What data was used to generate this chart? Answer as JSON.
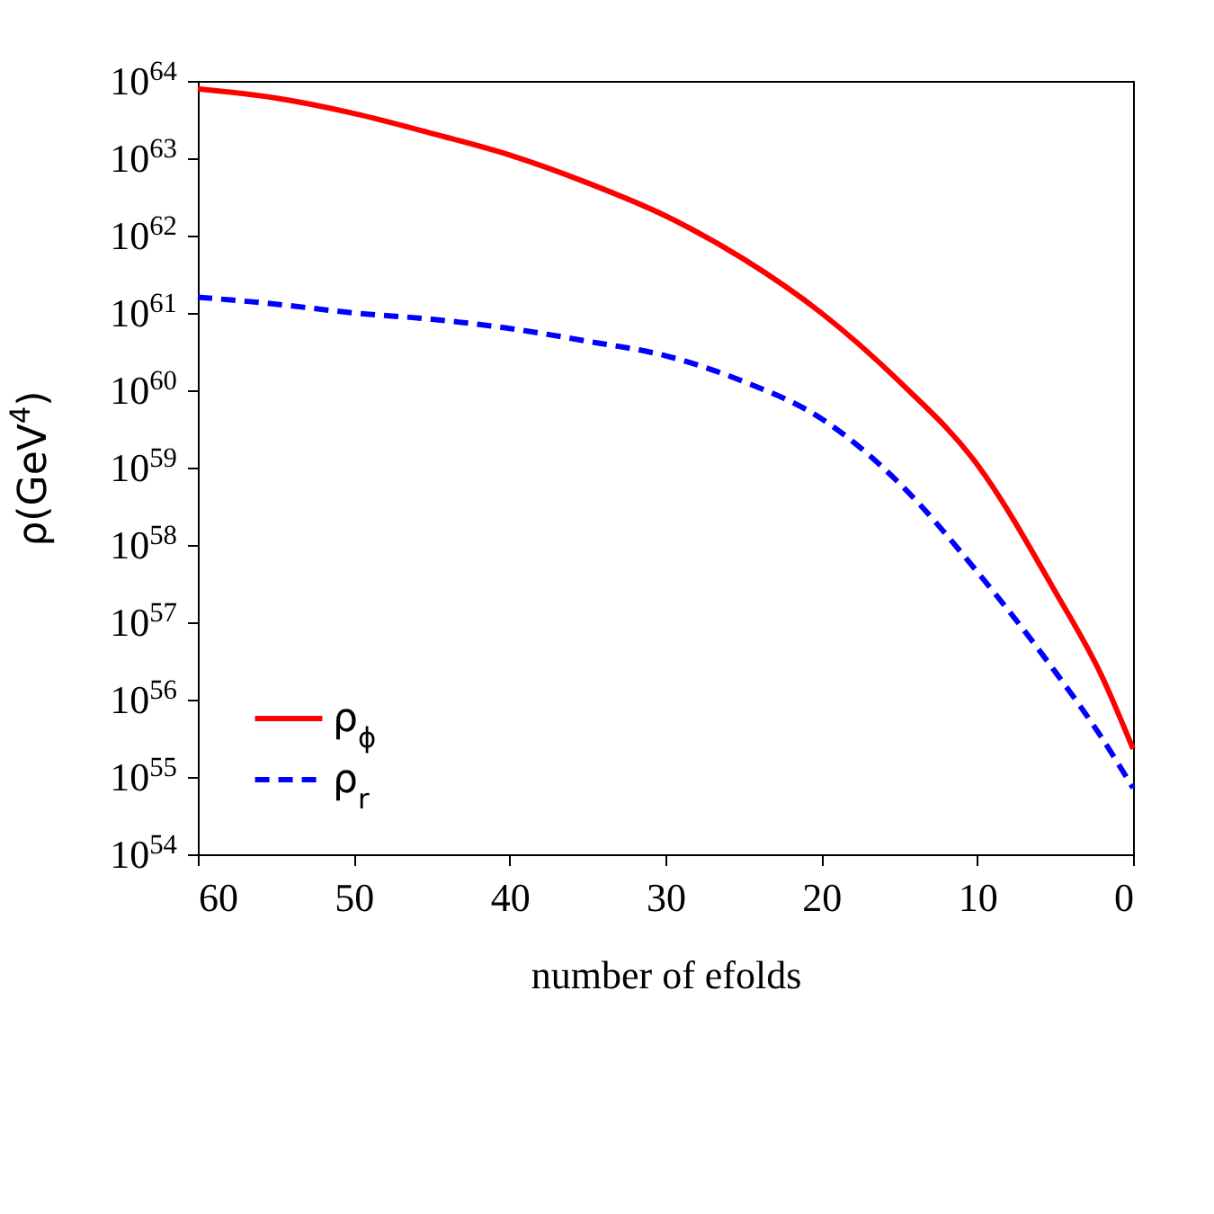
{
  "chart_data": {
    "type": "line",
    "xlabel": "number of efolds",
    "ylabel": "ρ(GeV$^{4}$)",
    "log": "y",
    "xlim": [
      60,
      0
    ],
    "xticks": [
      60,
      50,
      40,
      30,
      20,
      10,
      0
    ],
    "ylim": [
      1e+54,
      1e+64
    ],
    "yticks": [
      {
        "value": 1e+54,
        "label": "10$^{54}$"
      },
      {
        "value": 1e+55,
        "label": "10$^{55}$"
      },
      {
        "value": 1e+56,
        "label": "10$^{56}$"
      },
      {
        "value": 1e+57,
        "label": "10$^{57}$"
      },
      {
        "value": 1e+58,
        "label": "10$^{58}$"
      },
      {
        "value": 1e+59,
        "label": "10$^{59}$"
      },
      {
        "value": 1e+60,
        "label": "10$^{60}$"
      },
      {
        "value": 1e+61,
        "label": "10$^{61}$"
      },
      {
        "value": 1e+62,
        "label": "10$^{62}$"
      },
      {
        "value": 1e+63,
        "label": "10$^{63}$"
      },
      {
        "value": 1e+64,
        "label": "10$^{64}$"
      }
    ],
    "legend": "bottom left",
    "grid": false,
    "series": [
      {
        "name": "ρ$_{ϕ}$",
        "color": "#ff0000",
        "line_style": "solid",
        "x": [
          60,
          55,
          50,
          45,
          40,
          35,
          30,
          25,
          20,
          15,
          10,
          5,
          2,
          0
        ],
        "values": [
          7.9e+63,
          6e+63,
          3.8e+63,
          2.1e+63,
          1.1e+63,
          4.8e+62,
          1.8e+62,
          5e+61,
          1e+61,
          1.3e+60,
          1.1e+59,
          2.5e+57,
          2e+56,
          2.3e+55
        ]
      },
      {
        "name": "ρ$_{r}$",
        "color": "#0000ff",
        "line_style": "dashed",
        "x": [
          60,
          55,
          50,
          45,
          40,
          35,
          30,
          25,
          20,
          15,
          10,
          5,
          2,
          0
        ],
        "values": [
          1.6e+61,
          1.3e+61,
          1e+61,
          8.3e+60,
          6.3e+60,
          4.3e+60,
          2.8e+60,
          1.3e+60,
          4.3e+59,
          6.3e+58,
          4.5e+57,
          2.3e+56,
          3.2e+55,
          7.2e+54
        ]
      }
    ]
  }
}
